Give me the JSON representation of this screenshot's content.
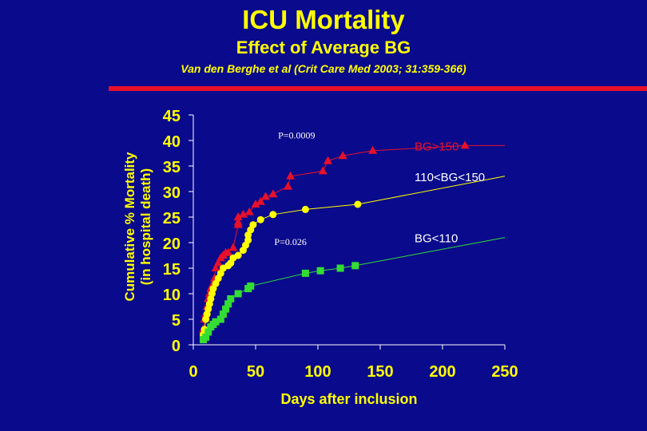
{
  "header": {
    "title": "ICU Mortality",
    "subtitle": "Effect of Average BG",
    "citation": "Van den Berghe et al (Crit Care Med 2003; 31:359-366)"
  },
  "colors": {
    "background": "#0a0a8c",
    "title": "#ffff00",
    "accent_bar": "#e8102a",
    "axis": "#ffffff"
  },
  "chart_data": {
    "type": "line",
    "xlabel": "Days after inclusion",
    "ylabel_lines": [
      "Cumulative % Mortality",
      "(in hospital death)"
    ],
    "xlim": [
      0,
      250
    ],
    "ylim": [
      0,
      45
    ],
    "xticks": [
      0,
      50,
      100,
      150,
      200,
      250
    ],
    "yticks": [
      0,
      5,
      10,
      15,
      20,
      25,
      30,
      35,
      40,
      45
    ],
    "grid": false,
    "series": [
      {
        "name": "BG>150",
        "color": "#e8102a",
        "marker": "triangle",
        "x": [
          8,
          9,
          10,
          11,
          12,
          13,
          14,
          15,
          16,
          17,
          18,
          20,
          22,
          24,
          26,
          28,
          32,
          36,
          36,
          36,
          40,
          45,
          50,
          54,
          58,
          64,
          76,
          78,
          104,
          108,
          120,
          144,
          218
        ],
        "y": [
          3,
          5,
          6,
          7.5,
          9,
          10,
          11,
          11.5,
          12,
          13,
          15,
          16,
          17,
          17.5,
          18,
          18,
          19,
          23.5,
          24,
          25,
          25.5,
          26,
          27.5,
          28,
          29,
          29.5,
          31,
          33,
          34,
          36,
          37,
          38,
          39
        ]
      },
      {
        "name": "110<BG<150",
        "color": "#ffff00",
        "marker": "circle",
        "x": [
          8,
          9,
          10,
          11,
          12,
          13,
          14,
          15,
          16,
          18,
          20,
          22,
          24,
          28,
          30,
          32,
          36,
          40,
          42,
          44,
          44,
          46,
          48,
          54,
          64,
          90,
          132
        ],
        "y": [
          2,
          3,
          5,
          6,
          7,
          8,
          9,
          10,
          11,
          12,
          13,
          14,
          15,
          15.5,
          16,
          17,
          17.5,
          18.5,
          19.5,
          20.5,
          21.5,
          22.5,
          23.5,
          24.5,
          25.5,
          26.5,
          27.5
        ]
      },
      {
        "name": "BG<110",
        "color": "#33dd33",
        "marker": "square",
        "x": [
          8,
          10,
          12,
          14,
          16,
          18,
          22,
          24,
          26,
          28,
          30,
          36,
          44,
          46,
          90,
          102,
          118,
          130
        ],
        "y": [
          1,
          1.5,
          2.5,
          3.5,
          4,
          4.5,
          5,
          6,
          7,
          8,
          9,
          10,
          11,
          11.5,
          14,
          14.5,
          15,
          15.5
        ]
      }
    ],
    "series_labels": [
      {
        "text": "BG>150",
        "color": "#e8102a",
        "x": 175,
        "y": 39
      },
      {
        "text": "110<BG<150",
        "color": "#ffffff",
        "x": 175,
        "y": 33
      },
      {
        "text": "BG<110",
        "color": "#ffffff",
        "x": 175,
        "y": 21
      }
    ],
    "annotations": [
      {
        "text": "P=0.0009",
        "x": 68,
        "y": 40.4
      },
      {
        "text": "P=0.026",
        "x": 65,
        "y": 19.5
      }
    ]
  }
}
